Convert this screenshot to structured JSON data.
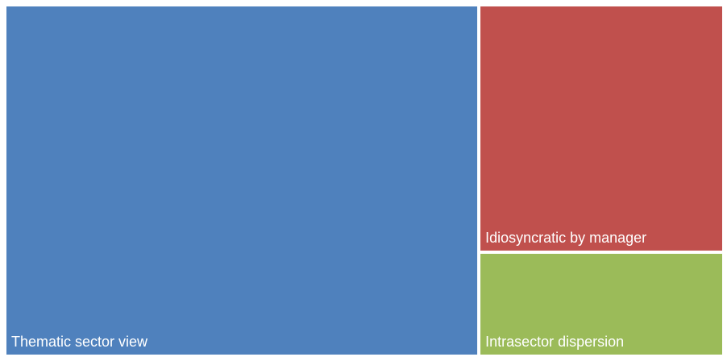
{
  "chart_data": {
    "type": "treemap",
    "categories": [
      "Thematic sector view",
      "Idiosyncratic by manager",
      "Intrasector dispersion"
    ],
    "values": [
      66,
      24,
      10
    ],
    "colors": [
      "#4f81bd",
      "#c0504d",
      "#9bbb59"
    ]
  }
}
